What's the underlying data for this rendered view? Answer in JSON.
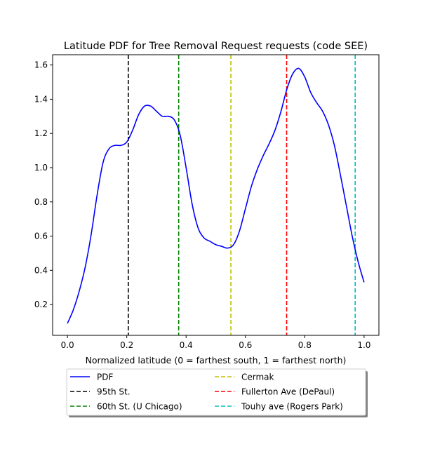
{
  "chart_data": {
    "type": "line",
    "title": "Latitude PDF for Tree Removal Request  requests (code SEE)",
    "xlabel": "Normalized latitude (0 = farthest south, 1 = farthest north)",
    "ylabel": "",
    "xlim": [
      -0.05,
      1.05
    ],
    "ylim": [
      0.02,
      1.66
    ],
    "xticks": [
      0.0,
      0.2,
      0.4,
      0.6,
      0.8,
      1.0
    ],
    "xtick_labels": [
      "0.0",
      "0.2",
      "0.4",
      "0.6",
      "0.8",
      "1.0"
    ],
    "yticks": [
      0.2,
      0.4,
      0.6,
      0.8,
      1.0,
      1.2,
      1.4,
      1.6
    ],
    "ytick_labels": [
      "0.2",
      "0.4",
      "0.6",
      "0.8",
      "1.0",
      "1.2",
      "1.4",
      "1.6"
    ],
    "grid": false,
    "legend_position": "below plot, two columns, with shadow",
    "series": [
      {
        "name": "PDF",
        "color": "#0000ff",
        "style": "solid",
        "x": [
          0.0,
          0.02,
          0.04,
          0.06,
          0.08,
          0.1,
          0.12,
          0.14,
          0.16,
          0.18,
          0.2,
          0.22,
          0.24,
          0.26,
          0.28,
          0.3,
          0.32,
          0.34,
          0.36,
          0.38,
          0.4,
          0.42,
          0.44,
          0.46,
          0.48,
          0.5,
          0.52,
          0.54,
          0.56,
          0.58,
          0.6,
          0.62,
          0.64,
          0.66,
          0.68,
          0.7,
          0.72,
          0.74,
          0.76,
          0.78,
          0.8,
          0.82,
          0.84,
          0.86,
          0.88,
          0.9,
          0.92,
          0.94,
          0.96,
          0.98,
          1.0
        ],
        "y": [
          0.09,
          0.17,
          0.28,
          0.42,
          0.61,
          0.84,
          1.03,
          1.11,
          1.13,
          1.13,
          1.15,
          1.22,
          1.31,
          1.36,
          1.36,
          1.33,
          1.3,
          1.3,
          1.28,
          1.19,
          1.0,
          0.79,
          0.65,
          0.59,
          0.57,
          0.55,
          0.54,
          0.53,
          0.55,
          0.63,
          0.76,
          0.89,
          0.99,
          1.07,
          1.14,
          1.22,
          1.33,
          1.46,
          1.55,
          1.58,
          1.53,
          1.44,
          1.38,
          1.33,
          1.25,
          1.13,
          0.96,
          0.78,
          0.6,
          0.45,
          0.33
        ]
      }
    ],
    "vlines": [
      {
        "name": "95th St.",
        "x": 0.205,
        "color": "#000000"
      },
      {
        "name": "60th St. (U Chicago)",
        "x": 0.375,
        "color": "#008000"
      },
      {
        "name": "Cermak",
        "x": 0.551,
        "color": "#bfbf00"
      },
      {
        "name": "Fullerton Ave (DePaul)",
        "x": 0.739,
        "color": "#ff0000"
      },
      {
        "name": "Touhy ave (Rogers Park)",
        "x": 0.97,
        "color": "#00bfbf"
      }
    ]
  }
}
